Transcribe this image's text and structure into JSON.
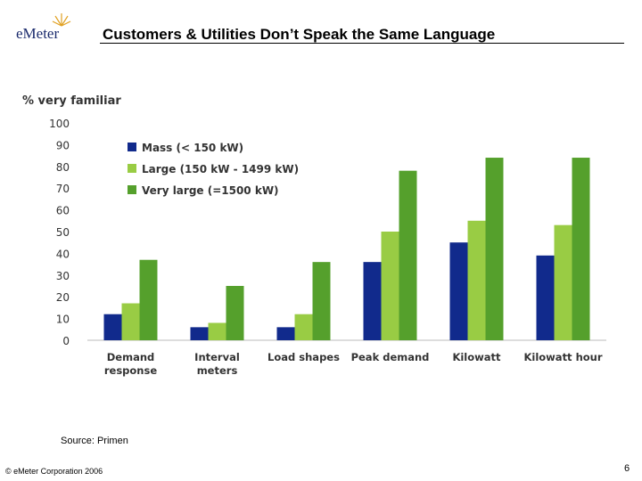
{
  "slide": {
    "logo_text": "eMeter",
    "title": "Customers & Utilities Don’t Speak the Same Language",
    "source": "Source: Primen",
    "copyright": "© eMeter Corporation 2006",
    "page_number": "6"
  },
  "colors": {
    "mass": "#112a8c",
    "large": "#99cc44",
    "very_large": "#55a02c",
    "axis_text": "#333333",
    "title_text": "#000000"
  },
  "chart_data": {
    "type": "bar",
    "title": "% very familiar",
    "categories": [
      "Demand\nresponse",
      "Interval\nmeters",
      "Load shapes",
      "Peak demand",
      "Kilowatt",
      "Kilowatt hour"
    ],
    "series": [
      {
        "name": "Mass (< 150 kW)",
        "values": [
          12,
          6,
          6,
          36,
          45,
          39
        ]
      },
      {
        "name": "Large (150 kW - 1499 kW)",
        "values": [
          17,
          8,
          12,
          50,
          55,
          53
        ]
      },
      {
        "name": "Very large (=1500 kW)",
        "values": [
          37,
          25,
          36,
          78,
          84,
          84
        ]
      }
    ],
    "yticks": [
      0,
      10,
      20,
      30,
      40,
      50,
      60,
      70,
      80,
      90,
      100
    ],
    "ylim": [
      0,
      100
    ],
    "grid": false,
    "legend_position": "top-left"
  }
}
